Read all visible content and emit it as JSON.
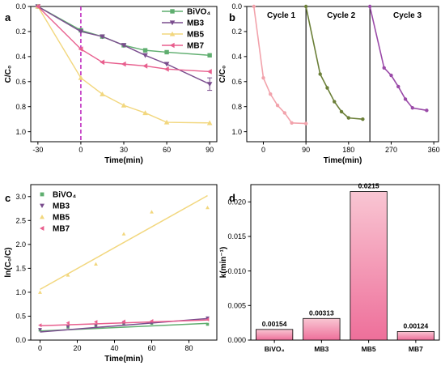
{
  "chart_data": [
    {
      "panel": "a",
      "type": "line",
      "xlabel": "Time(min)",
      "ylabel": "C/C₀",
      "xlim": [
        -35,
        95
      ],
      "ylim": [
        0,
        1.08
      ],
      "y_inverted": true,
      "xticks": [
        -30,
        0,
        30,
        60,
        90
      ],
      "yticks": [
        0.0,
        0.2,
        0.4,
        0.6,
        0.8,
        1.0
      ],
      "ytick_labels": [
        "0.0",
        "0.2",
        "0.4",
        "0.6",
        "0.8",
        "1.0"
      ],
      "vline_x": 0,
      "vline_color": "#c030c0",
      "legend_position": "top-right",
      "x": [
        -30,
        0,
        15,
        30,
        45,
        60,
        90
      ],
      "series": [
        {
          "name": "BiVO₄",
          "color": "#5fae6f",
          "marker": "square",
          "values": [
            0.0,
            0.19,
            0.24,
            0.31,
            0.35,
            0.365,
            0.39
          ]
        },
        {
          "name": "MB3",
          "color": "#7a4d8e",
          "marker": "tri_down",
          "values": [
            0.0,
            0.2,
            0.24,
            0.31,
            0.39,
            0.46,
            0.62
          ],
          "error_last": 0.05
        },
        {
          "name": "MB5",
          "color": "#f2d77e",
          "marker": "tri_up",
          "values": [
            0.0,
            0.57,
            0.7,
            0.79,
            0.85,
            0.925,
            0.93
          ]
        },
        {
          "name": "MB7",
          "color": "#e85f8e",
          "marker": "tri_left",
          "values": [
            0.0,
            0.34,
            0.445,
            0.46,
            0.475,
            0.5,
            0.52
          ]
        }
      ]
    },
    {
      "panel": "b",
      "type": "line",
      "xlabel": "Time(min)",
      "ylabel": "C/C₀",
      "xlim": [
        -35,
        370
      ],
      "ylim": [
        0,
        1.08
      ],
      "y_inverted": true,
      "xticks": [
        0,
        90,
        180,
        270,
        360
      ],
      "yticks": [
        0.0,
        0.2,
        0.4,
        0.6,
        0.8,
        1.0
      ],
      "ytick_labels": [
        "0.0",
        "0.2",
        "0.4",
        "0.6",
        "0.8",
        "1.0"
      ],
      "dividers": [
        90,
        225
      ],
      "cycle_labels": [
        "Cycle 1",
        "Cycle 2",
        "Cycle 3"
      ],
      "series": [
        {
          "color": "#f2a3ac",
          "x": [
            -20,
            0,
            15,
            30,
            45,
            60,
            90
          ],
          "values": [
            0.0,
            0.57,
            0.7,
            0.79,
            0.85,
            0.93,
            0.935
          ]
        },
        {
          "color": "#6b7f38",
          "x": [
            90,
            120,
            135,
            150,
            165,
            180,
            210
          ],
          "values": [
            0.0,
            0.54,
            0.65,
            0.76,
            0.84,
            0.89,
            0.9
          ]
        },
        {
          "color": "#9a4aa8",
          "x": [
            225,
            255,
            270,
            285,
            300,
            315,
            345
          ],
          "values": [
            0.0,
            0.49,
            0.55,
            0.64,
            0.74,
            0.81,
            0.83
          ]
        }
      ]
    },
    {
      "panel": "c",
      "type": "scatter",
      "xlabel": "Time(min)",
      "ylabel": "ln(C₀/C)",
      "xlim": [
        -5,
        95
      ],
      "ylim": [
        0,
        3.25
      ],
      "xticks": [
        0,
        20,
        40,
        60,
        80
      ],
      "yticks": [
        0.0,
        0.5,
        1.0,
        1.5,
        2.0,
        2.5,
        3.0
      ],
      "ytick_labels": [
        "0.0",
        "0.5",
        "1.0",
        "1.5",
        "2.0",
        "2.5",
        "3.0"
      ],
      "legend_position": "top-left",
      "x": [
        0,
        15,
        30,
        45,
        60,
        90
      ],
      "series": [
        {
          "name": "BiVO₄",
          "color": "#5fae6f",
          "marker": "square",
          "values": [
            0.21,
            0.27,
            0.3,
            0.33,
            0.35,
            0.33
          ],
          "fit": [
            0.19,
            0.35
          ]
        },
        {
          "name": "MB3",
          "color": "#7a4d8e",
          "marker": "tri_down",
          "values": [
            0.22,
            0.28,
            0.31,
            0.35,
            0.36,
            0.46
          ],
          "fit": [
            0.17,
            0.45
          ]
        },
        {
          "name": "MB5",
          "color": "#f2d77e",
          "marker": "tri_up",
          "values": [
            1.0,
            1.36,
            1.59,
            2.22,
            2.68,
            2.77
          ],
          "fit": [
            1.06,
            3.02
          ]
        },
        {
          "name": "MB7",
          "color": "#e85f8e",
          "marker": "tri_left",
          "values": [
            0.31,
            0.36,
            0.38,
            0.39,
            0.4,
            0.43
          ],
          "fit": [
            0.3,
            0.42
          ]
        }
      ]
    },
    {
      "panel": "d",
      "type": "bar",
      "xlabel": "",
      "ylabel": "k(min⁻¹)",
      "ylim": [
        0,
        0.0225
      ],
      "yticks": [
        0.0,
        0.005,
        0.01,
        0.015,
        0.02
      ],
      "ytick_labels": [
        "0.000",
        "0.005",
        "0.010",
        "0.015",
        "0.020"
      ],
      "categories": [
        "BiVO₄",
        "MB3",
        "MB5",
        "MB7"
      ],
      "values": [
        0.00154,
        0.00313,
        0.0215,
        0.00124
      ],
      "labels": [
        "0.00154",
        "0.00313",
        "0.0215",
        "0.00124"
      ]
    }
  ]
}
